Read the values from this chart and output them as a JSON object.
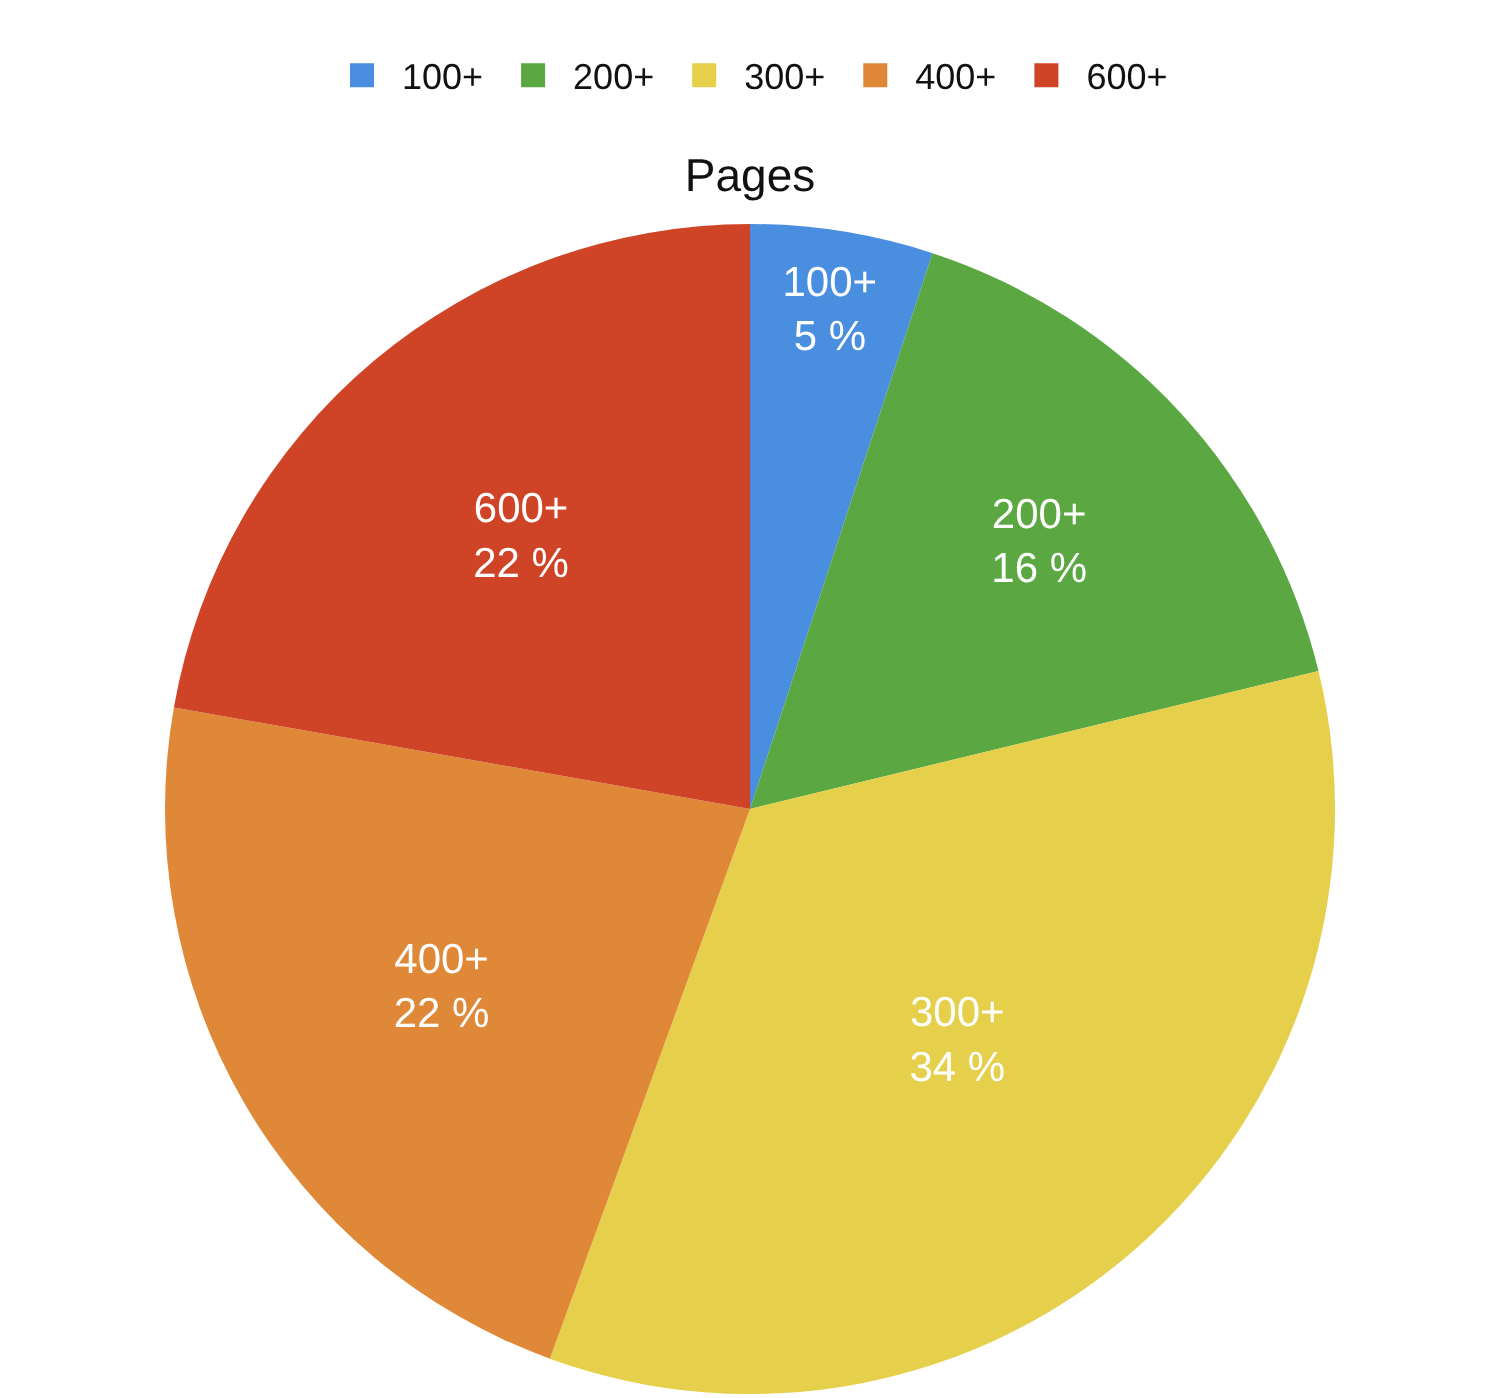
{
  "chart_data": {
    "type": "pie",
    "title": "Pages",
    "categories": [
      "100+",
      "200+",
      "300+",
      "400+",
      "600+"
    ],
    "values": [
      5,
      16,
      34,
      22,
      22
    ],
    "value_labels": [
      "5 %",
      "16 %",
      "34 %",
      "22 %",
      "22 %"
    ],
    "colors": [
      "#4a8ee0",
      "#5ba843",
      "#e6cf4a",
      "#df8838",
      "#cf4427"
    ],
    "legend": "top"
  }
}
